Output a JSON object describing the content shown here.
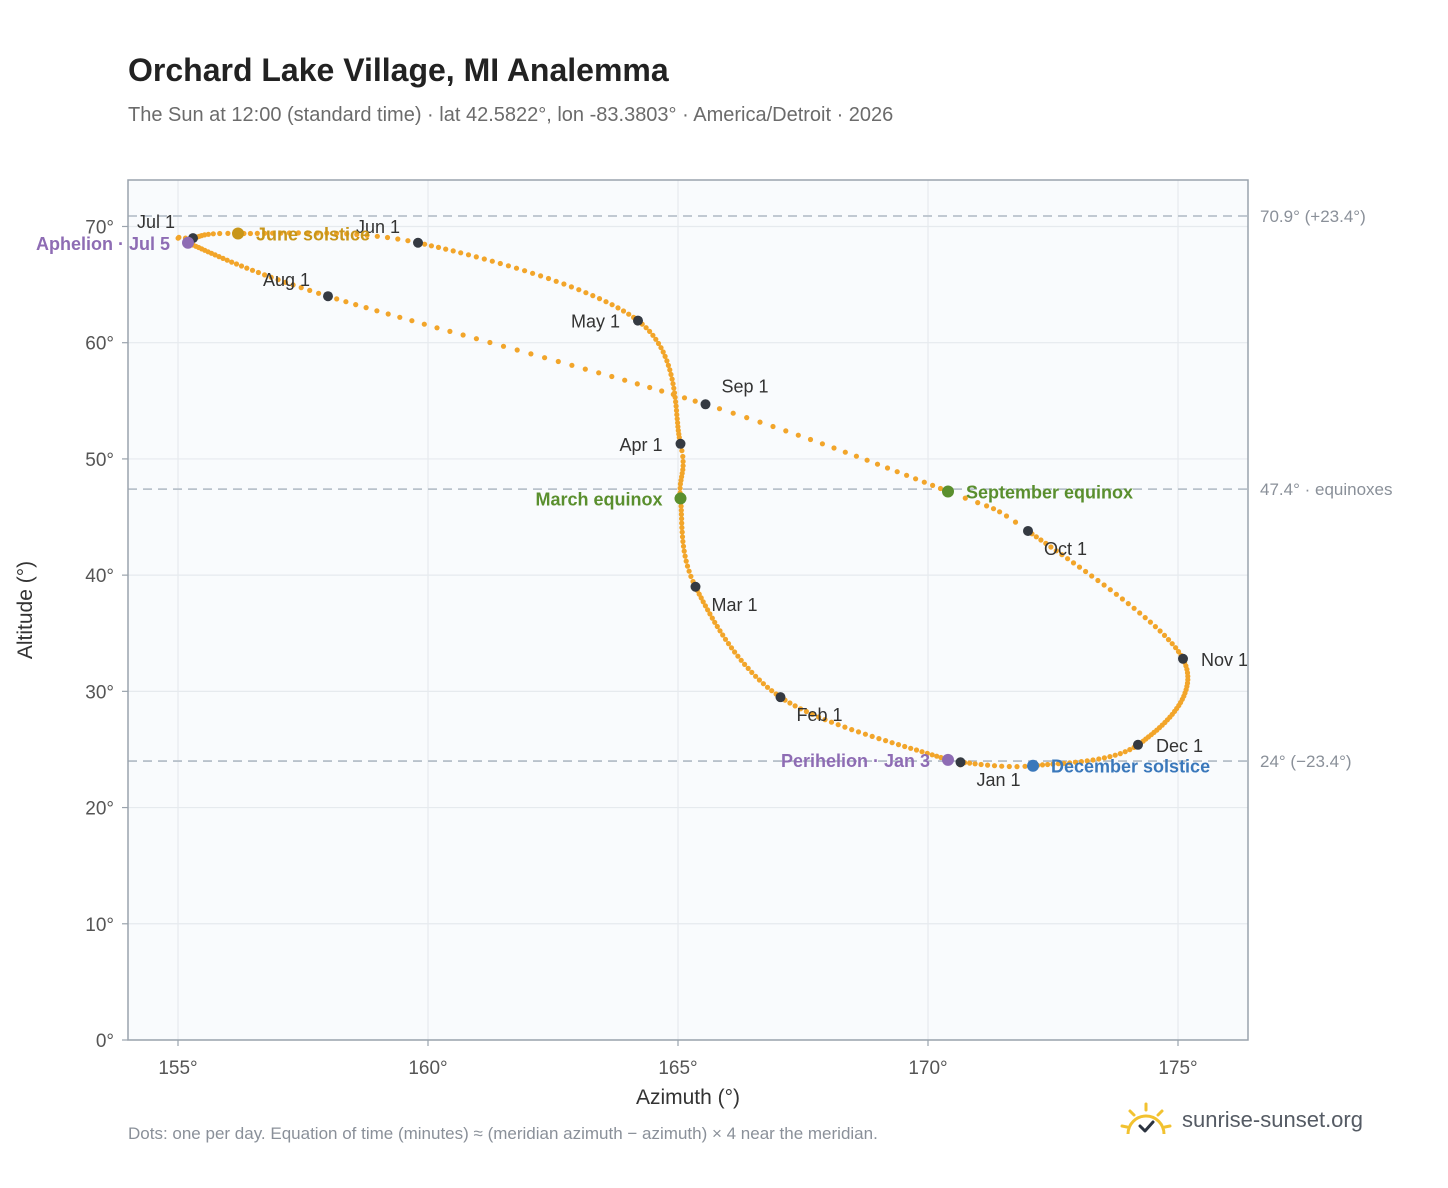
{
  "title": "Orchard Lake Village, MI Analemma",
  "subtitle": "The Sun at 12:00 (standard time) · lat 42.5822°, lon -83.3803° · America/Detroit · 2026",
  "footnote": "Dots: one per day. Equation of time (minutes) ≈ (meridian azimuth − azimuth) × 4 near the meridian.",
  "brand": {
    "name": "sunrise-sunset.org",
    "icon": "sun-logo-icon"
  },
  "colors": {
    "path": "#f2a52a",
    "month": "#353a42",
    "june": "#c8961a",
    "december": "#3a78bb",
    "equinox": "#5a8f2e",
    "apsis": "#8e6cb4",
    "refline": "#b9c2cb",
    "grid": "#e6eaee",
    "plot_bg": "#f9fbfd"
  },
  "chart_data": {
    "type": "scatter",
    "title": "Orchard Lake Village, MI Analemma",
    "xlabel": "Azimuth (°)",
    "ylabel": "Altitude (°)",
    "xlim": [
      154,
      176.4
    ],
    "ylim": [
      0,
      74
    ],
    "xticks": [
      155,
      160,
      165,
      170,
      175
    ],
    "yticks": [
      0,
      10,
      20,
      30,
      40,
      50,
      60,
      70
    ],
    "grid": true,
    "ref_lines": [
      {
        "y": 70.9,
        "label": "70.9° (+23.4°)"
      },
      {
        "y": 47.4,
        "label": "47.4° · equinoxes"
      },
      {
        "y": 24.0,
        "label": "24° (−23.4°)"
      }
    ],
    "month_points": [
      {
        "label": "Jan 1",
        "x": 170.65,
        "y": 23.9,
        "pos": "below"
      },
      {
        "label": "Feb 1",
        "x": 167.05,
        "y": 29.5,
        "pos": "below-right"
      },
      {
        "label": "Mar 1",
        "x": 165.35,
        "y": 39.0,
        "pos": "below-right"
      },
      {
        "label": "Apr 1",
        "x": 165.05,
        "y": 51.3,
        "pos": "left"
      },
      {
        "label": "May 1",
        "x": 164.2,
        "y": 61.9,
        "pos": "left"
      },
      {
        "label": "Jun 1",
        "x": 159.8,
        "y": 68.6,
        "pos": "above-left"
      },
      {
        "label": "Jul 1",
        "x": 155.3,
        "y": 69.0,
        "pos": "above-left"
      },
      {
        "label": "Aug 1",
        "x": 158.0,
        "y": 64.0,
        "pos": "above-left"
      },
      {
        "label": "Sep 1",
        "x": 165.55,
        "y": 54.7,
        "pos": "above-right"
      },
      {
        "label": "Oct 1",
        "x": 172.0,
        "y": 43.8,
        "pos": "below-right"
      },
      {
        "label": "Nov 1",
        "x": 175.1,
        "y": 32.8,
        "pos": "right"
      },
      {
        "label": "Dec 1",
        "x": 174.2,
        "y": 25.4,
        "pos": "right"
      }
    ],
    "events": [
      {
        "label": "June solstice",
        "x": 156.2,
        "y": 69.4,
        "kind": "june",
        "pos": "right"
      },
      {
        "label": "December solstice",
        "x": 172.1,
        "y": 23.6,
        "kind": "december",
        "pos": "right"
      },
      {
        "label": "March equinox",
        "x": 165.05,
        "y": 46.6,
        "kind": "equinox",
        "pos": "left"
      },
      {
        "label": "September equinox",
        "x": 170.4,
        "y": 47.2,
        "kind": "equinox",
        "pos": "right"
      },
      {
        "label": "Aphelion · Jul 5",
        "x": 155.2,
        "y": 68.6,
        "kind": "apsis",
        "pos": "left"
      },
      {
        "label": "Perihelion · Jan 3",
        "x": 170.4,
        "y": 24.1,
        "kind": "apsis",
        "pos": "left"
      }
    ]
  }
}
